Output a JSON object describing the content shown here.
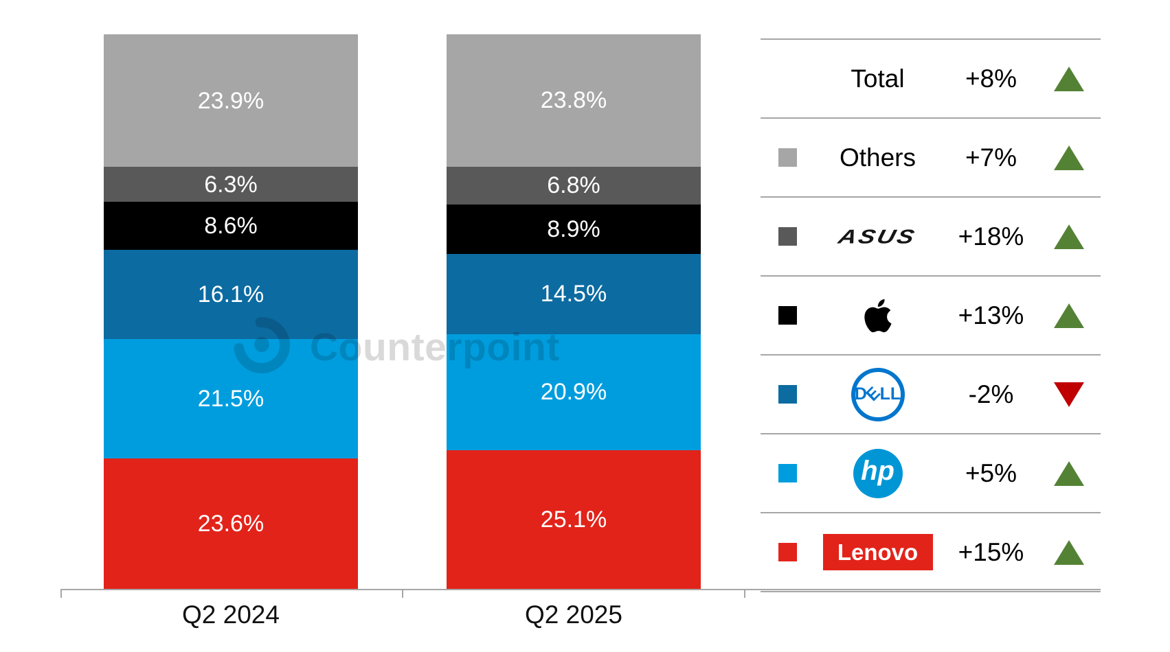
{
  "chart_data": {
    "type": "bar",
    "subtype": "100% stacked column",
    "categories": [
      "Q2 2024",
      "Q2 2025"
    ],
    "unit": "%",
    "ylim": [
      0,
      100
    ],
    "grid": false,
    "legend_position": "right",
    "series": [
      {
        "name": "Others",
        "color": "#a6a6a6",
        "values": [
          23.9,
          23.8
        ],
        "labels": [
          "23.9%",
          "23.8%"
        ]
      },
      {
        "name": "ASUS",
        "color": "#595959",
        "values": [
          6.3,
          6.8
        ],
        "labels": [
          "6.3%",
          "6.8%"
        ]
      },
      {
        "name": "Apple",
        "color": "#000000",
        "values": [
          8.6,
          8.9
        ],
        "labels": [
          "8.6%",
          "8.9%"
        ]
      },
      {
        "name": "Dell",
        "color": "#0c6ba1",
        "values": [
          16.1,
          14.5
        ],
        "labels": [
          "16.1%",
          "14.5%"
        ]
      },
      {
        "name": "HP",
        "color": "#009dde",
        "values": [
          21.5,
          20.9
        ],
        "labels": [
          "21.5%",
          "20.9%"
        ]
      },
      {
        "name": "Lenovo",
        "color": "#e2231a",
        "values": [
          23.6,
          25.1
        ],
        "labels": [
          "23.6%",
          "25.1%"
        ]
      }
    ]
  },
  "legend": {
    "trend_up_color": "#548235",
    "trend_down_color": "#c00000",
    "rows": [
      {
        "id": "total",
        "logo": "text",
        "name_text": "Total",
        "swatch": null,
        "growth": "+8%",
        "trend": "up"
      },
      {
        "id": "others",
        "logo": "text",
        "name_text": "Others",
        "swatch": "#a6a6a6",
        "growth": "+7%",
        "trend": "up"
      },
      {
        "id": "asus",
        "logo": "asus",
        "name_text": "ASUS",
        "swatch": "#595959",
        "growth": "+18%",
        "trend": "up"
      },
      {
        "id": "apple",
        "logo": "apple",
        "name_text": "",
        "swatch": "#000000",
        "growth": "+13%",
        "trend": "up"
      },
      {
        "id": "dell",
        "logo": "dell",
        "name_text": "DELL",
        "swatch": "#0c6ba1",
        "growth": "-2%",
        "trend": "down"
      },
      {
        "id": "hp",
        "logo": "hp",
        "name_text": "hp",
        "swatch": "#009dde",
        "growth": "+5%",
        "trend": "up"
      },
      {
        "id": "lenovo",
        "logo": "lenovo",
        "name_text": "Lenovo",
        "swatch": "#e2231a",
        "growth": "+15%",
        "trend": "up"
      }
    ]
  },
  "watermark": {
    "text": "Counterpoint"
  }
}
